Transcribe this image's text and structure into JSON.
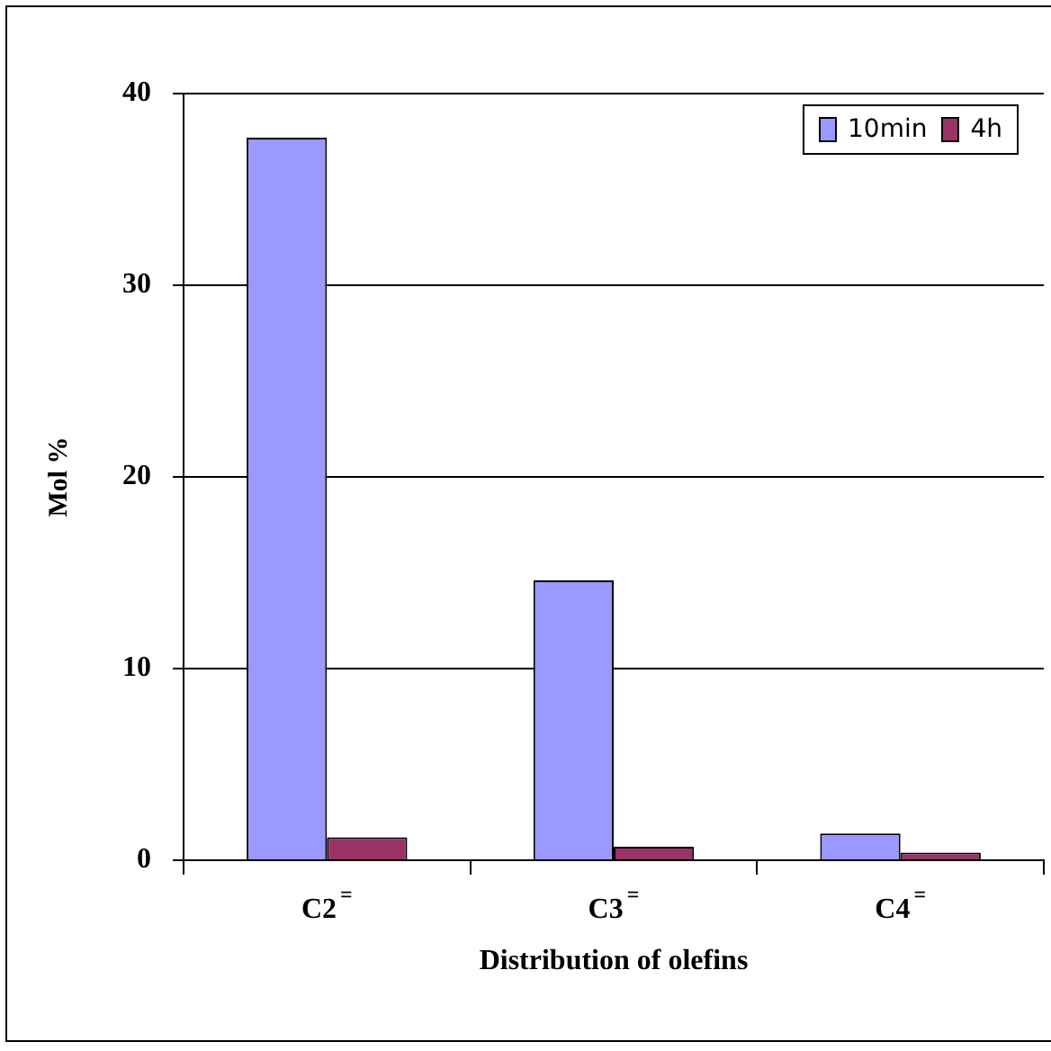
{
  "chart_data": {
    "type": "bar",
    "xlabel": "Distribution of olefins",
    "ylabel": "Mol %",
    "categories": [
      "C2$^{=}$",
      "C3$^{=}$",
      "C4$^{=}$"
    ],
    "series": [
      {
        "name": "10min",
        "color": "#9999ff",
        "values": [
          37.7,
          14.6,
          1.4
        ]
      },
      {
        "name": "4h",
        "color": "#993366",
        "values": [
          1.2,
          0.7,
          0.4
        ]
      }
    ],
    "ylim": [
      0,
      40
    ],
    "yticks": [
      0,
      10,
      20,
      30,
      40
    ],
    "grid": "y",
    "legend": "top right"
  }
}
